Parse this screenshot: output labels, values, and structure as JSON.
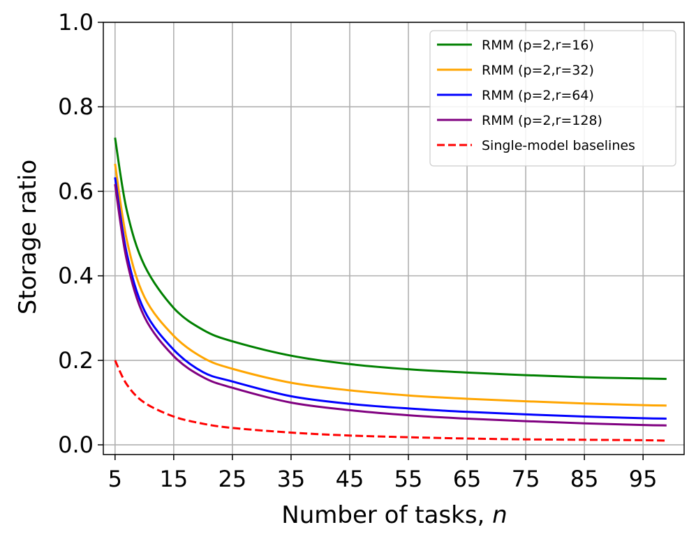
{
  "chart_data": {
    "type": "line",
    "xlabel": "Number of tasks, ",
    "xlabel_var": "n",
    "ylabel": "Storage ratio",
    "xlim": [
      3,
      102
    ],
    "ylim": [
      -0.023,
      1.0
    ],
    "xticks": [
      5,
      15,
      25,
      35,
      45,
      55,
      65,
      75,
      85,
      95
    ],
    "xtick_labels": [
      "5",
      "15",
      "25",
      "35",
      "45",
      "55",
      "65",
      "75",
      "85",
      "95"
    ],
    "yticks": [
      0.0,
      0.2,
      0.4,
      0.6,
      0.8,
      1.0
    ],
    "ytick_labels": [
      "0.0",
      "0.2",
      "0.4",
      "0.6",
      "0.8",
      "1.0"
    ],
    "grid": true,
    "legend_position": "top-right",
    "x": [
      5,
      7,
      10,
      15,
      20,
      25,
      35,
      45,
      55,
      65,
      75,
      85,
      95,
      99
    ],
    "series": [
      {
        "name": "RMM (p=2,r=16)",
        "color": "#008000",
        "dash": "solid",
        "values": [
          0.727,
          0.555,
          0.425,
          0.324,
          0.272,
          0.245,
          0.211,
          0.191,
          0.179,
          0.171,
          0.165,
          0.16,
          0.157,
          0.156
        ]
      },
      {
        "name": "RMM (p=2,r=32)",
        "color": "#FFA500",
        "dash": "solid",
        "values": [
          0.665,
          0.485,
          0.35,
          0.258,
          0.206,
          0.18,
          0.147,
          0.129,
          0.117,
          0.109,
          0.103,
          0.098,
          0.094,
          0.093
        ]
      },
      {
        "name": "RMM (p=2,r=64)",
        "color": "#0000FF",
        "dash": "solid",
        "values": [
          0.633,
          0.453,
          0.318,
          0.225,
          0.172,
          0.15,
          0.115,
          0.097,
          0.086,
          0.078,
          0.072,
          0.067,
          0.063,
          0.062
        ]
      },
      {
        "name": "RMM (p=2,r=128)",
        "color": "#800080",
        "dash": "solid",
        "values": [
          0.617,
          0.437,
          0.303,
          0.21,
          0.16,
          0.135,
          0.1,
          0.082,
          0.07,
          0.062,
          0.056,
          0.051,
          0.047,
          0.046
        ]
      },
      {
        "name": "Single-model baselines",
        "color": "#FF0000",
        "dash": "dashed",
        "values": [
          0.2,
          0.143,
          0.1,
          0.067,
          0.05,
          0.04,
          0.029,
          0.022,
          0.018,
          0.015,
          0.013,
          0.012,
          0.011,
          0.01
        ]
      }
    ]
  }
}
